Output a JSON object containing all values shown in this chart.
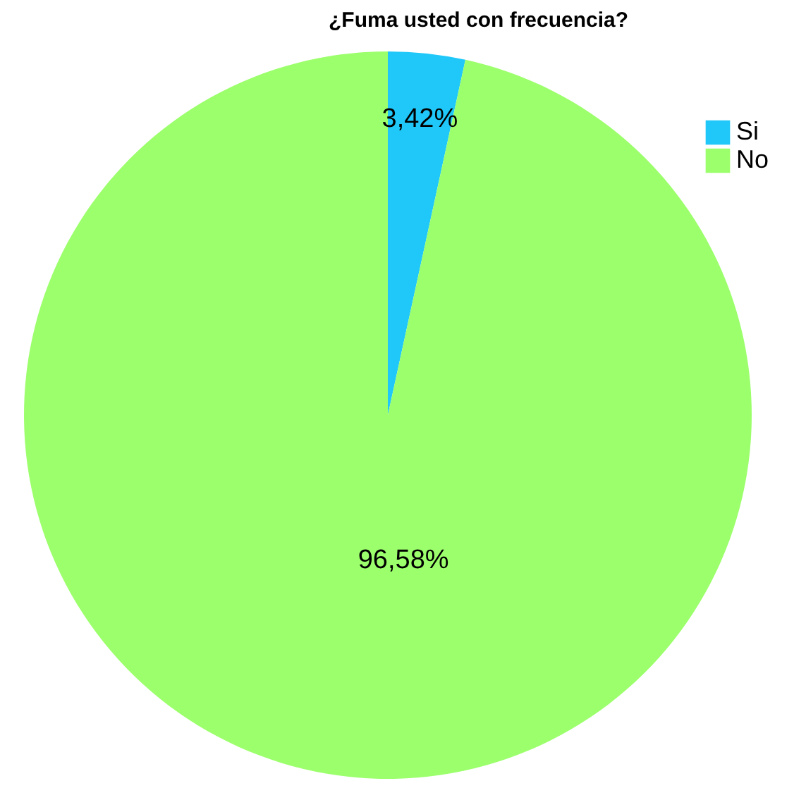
{
  "chart_data": {
    "type": "pie",
    "title": "¿Fuma usted con frecuencia?",
    "categories": [
      "Si",
      "No"
    ],
    "values": [
      3.42,
      96.58
    ],
    "colors": [
      "#1fc8f8",
      "#9cff6c"
    ],
    "value_labels": [
      "3,42%",
      "96,58%"
    ],
    "legend": "top right"
  }
}
